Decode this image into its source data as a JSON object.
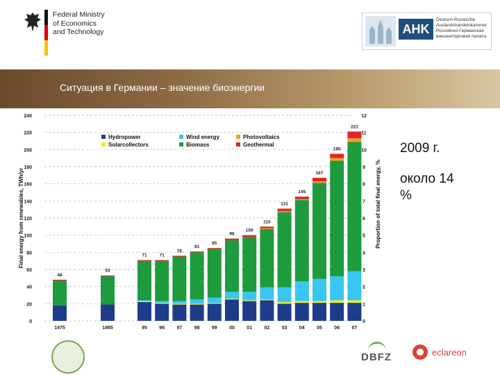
{
  "header": {
    "ministry_lines": [
      "Federal Ministry",
      "of Economics",
      "and Technology"
    ],
    "ahk_label": "AHK",
    "ahk_lines": [
      "Deutsch-Russische",
      "Auslandshandelskammer",
      "Российско-Германская",
      "внешнеторговая палата"
    ]
  },
  "slide_title": "Ситуация в Германии – значение биоэнергии",
  "side_note": {
    "line1": "2009 г.",
    "line2": "около 14",
    "line3": "%"
  },
  "footer": {
    "dbfz_label": "DBFZ",
    "eclareon_label": "eclareon"
  },
  "colors": {
    "hydro": "#1f3b8c",
    "solarcollectors": "#f2ea2a",
    "wind": "#39c6f4",
    "biomass": "#1e9b3c",
    "photovoltaics": "#f4a020",
    "geothermal": "#e0262a"
  },
  "chart_data": {
    "type": "bar",
    "stacked": true,
    "categories": [
      "1975",
      "1985",
      "95",
      "96",
      "97",
      "98",
      "99",
      "00",
      "01",
      "02",
      "03",
      "04",
      "05",
      "06",
      "07"
    ],
    "totals": [
      48,
      53,
      71,
      71,
      76,
      81,
      85,
      96,
      100,
      110,
      131,
      145,
      167,
      195,
      221
    ],
    "series": [
      {
        "name": "Hydropower",
        "color_key": "hydro",
        "values": [
          18,
          19,
          22,
          20,
          19,
          19,
          20,
          25,
          23,
          24,
          20,
          21,
          21,
          21,
          21
        ]
      },
      {
        "name": "Solarcollectors",
        "color_key": "solarcollectors",
        "values": [
          0,
          0,
          1,
          1,
          1,
          1,
          1,
          1,
          1,
          1,
          2,
          2,
          2,
          3,
          3
        ]
      },
      {
        "name": "Wind energy",
        "color_key": "wind",
        "values": [
          0,
          0,
          1,
          2,
          3,
          5,
          6,
          8,
          10,
          14,
          17,
          23,
          26,
          28,
          34
        ]
      },
      {
        "name": "Biomass",
        "color_key": "biomass",
        "values": [
          29,
          33,
          46,
          47,
          52,
          55,
          57,
          60,
          64,
          68,
          88,
          95,
          112,
          135,
          151
        ]
      },
      {
        "name": "Photovoltaics",
        "color_key": "photovoltaics",
        "values": [
          0,
          0,
          0,
          0,
          0,
          0,
          0,
          0,
          0,
          1,
          1,
          1,
          2,
          3,
          4
        ]
      },
      {
        "name": "Geothermal",
        "color_key": "geothermal",
        "values": [
          1,
          1,
          1,
          1,
          1,
          1,
          1,
          2,
          2,
          2,
          3,
          3,
          4,
          5,
          8
        ]
      }
    ],
    "ylabel": "Final energy from renewables, TWh/yr",
    "y2label": "Proportion of total final energy, %",
    "ylim": [
      0,
      240
    ],
    "y_ticks": [
      0,
      20,
      40,
      60,
      80,
      100,
      120,
      140,
      160,
      180,
      200,
      220,
      240
    ],
    "y2_ticks": [
      0,
      1,
      2,
      3,
      4,
      5,
      6,
      7,
      8,
      9,
      10,
      11,
      12
    ],
    "grid": "dashed",
    "legend_placement": "top-left"
  }
}
